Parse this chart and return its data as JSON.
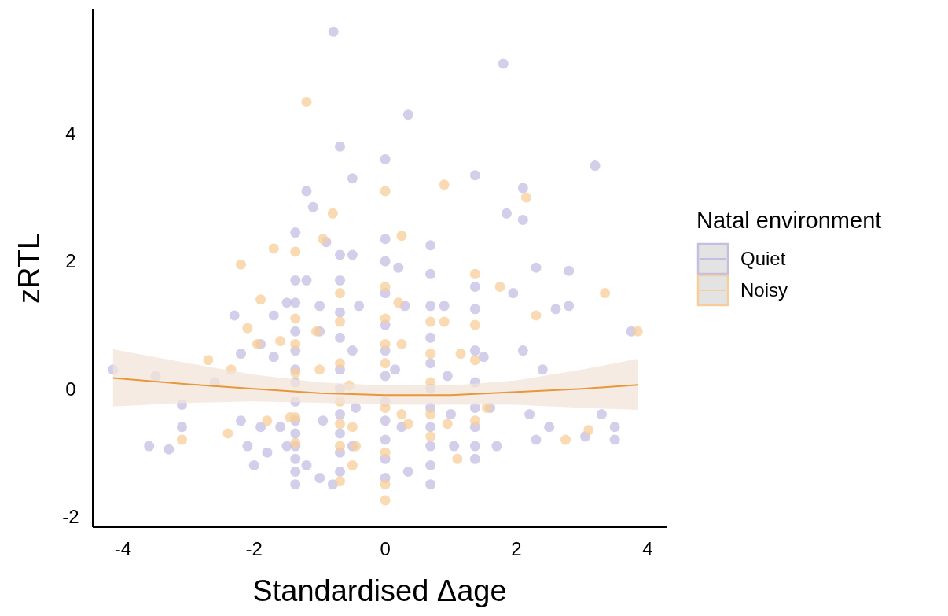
{
  "chart_data": {
    "type": "scatter",
    "xlabel": "Standardised Δage",
    "ylabel": "zRTL",
    "legend_title": "Natal environment",
    "legend": "right",
    "grid": false,
    "marker": "circle",
    "xlim": [
      -4.46,
      4.29
    ],
    "xticks": [
      -4,
      -2,
      0,
      2,
      4
    ],
    "ylim": [
      -2.17,
      5.95
    ],
    "yticks": [
      -2,
      0,
      2,
      4
    ],
    "series": [
      {
        "name": "Quiet",
        "color": "#c4bee3",
        "x": [
          -4.15,
          -3.6,
          -3.5,
          -3.3,
          -3.1,
          -3.1,
          -2.6,
          -2.3,
          -2.2,
          -2.2,
          -2.1,
          -2.0,
          -1.9,
          -1.9,
          -1.8,
          -1.7,
          -1.7,
          -1.6,
          -1.5,
          -1.5,
          -1.37,
          -1.37,
          -1.37,
          -1.37,
          -1.37,
          -1.37,
          -1.37,
          -1.37,
          -1.37,
          -1.37,
          -1.37,
          -1.37,
          -1.37,
          -1.37,
          -1.2,
          -1.2,
          -1.2,
          -1.1,
          -1.0,
          -1.0,
          -0.9,
          -0.95,
          -1.0,
          -0.8,
          -0.69,
          -0.69,
          -0.69,
          -0.69,
          -0.69,
          -0.69,
          -0.69,
          -0.69,
          -0.69,
          -0.69,
          -0.69,
          -0.79,
          -0.5,
          -0.5,
          -0.4,
          -0.5,
          -0.45,
          -0.5,
          0,
          0,
          0,
          0,
          0,
          0,
          0,
          0,
          0,
          0,
          0,
          0,
          0.35,
          0.2,
          0.3,
          0.25,
          0.35,
          0.15,
          0.69,
          0.69,
          0.69,
          0.69,
          0.69,
          0.69,
          0.69,
          0.69,
          0.69,
          0.69,
          0.69,
          0.9,
          0.95,
          1.0,
          1.05,
          1.37,
          1.37,
          1.37,
          1.37,
          1.37,
          1.37,
          1.37,
          1.37,
          1.37,
          1.5,
          1.6,
          1.7,
          1.8,
          1.85,
          1.95,
          2.1,
          2.1,
          2.1,
          2.2,
          2.3,
          2.4,
          2.3,
          2.5,
          2.6,
          2.8,
          2.8,
          3.05,
          3.2,
          3.3,
          3.5,
          3.5,
          3.75
        ],
        "values": [
          0.3,
          -0.9,
          0.2,
          -0.95,
          -0.6,
          -0.25,
          0.1,
          1.15,
          0.55,
          -0.5,
          -0.9,
          -1.2,
          0.7,
          -0.6,
          -1.0,
          1.15,
          0.5,
          -0.6,
          1.35,
          -0.9,
          2.45,
          1.7,
          1.35,
          0.9,
          0.6,
          0.3,
          0.1,
          -0.2,
          -0.5,
          -0.7,
          -0.9,
          -1.1,
          -1.3,
          -1.5,
          3.1,
          1.7,
          -1.2,
          2.85,
          1.3,
          0.9,
          2.3,
          -0.5,
          -1.4,
          -1.5,
          3.8,
          2.1,
          1.7,
          1.2,
          0.8,
          0.3,
          0.0,
          -0.4,
          -0.7,
          -1.0,
          -1.3,
          5.6,
          3.3,
          2.1,
          1.3,
          0.6,
          -0.3,
          -0.9,
          3.6,
          2.35,
          2.0,
          1.5,
          1.0,
          0.6,
          0.2,
          -0.2,
          -0.5,
          -0.8,
          -1.1,
          -1.4,
          4.3,
          1.9,
          1.3,
          -0.6,
          -1.3,
          0.3,
          2.25,
          1.8,
          1.3,
          0.8,
          0.4,
          0,
          -0.3,
          -0.6,
          -0.9,
          -1.2,
          -1.5,
          1.3,
          0.2,
          -0.4,
          -0.9,
          3.35,
          1.6,
          1.25,
          0.6,
          0.1,
          -0.3,
          -0.6,
          -0.9,
          -1.1,
          0.5,
          -0.3,
          -0.9,
          5.1,
          2.75,
          1.5,
          3.15,
          2.65,
          0.6,
          -0.4,
          1.9,
          0.3,
          -0.8,
          -0.6,
          1.25,
          1.85,
          1.3,
          -0.75,
          3.5,
          -0.4,
          -0.6,
          -0.8,
          0.9
        ]
      },
      {
        "name": "Noisy",
        "color": "#f7cd9a",
        "x": [
          -3.1,
          -2.7,
          -2.4,
          -2.35,
          -2.2,
          -2.1,
          -1.95,
          -1.9,
          -1.8,
          -1.7,
          -1.6,
          -1.45,
          -1.37,
          -1.37,
          -1.37,
          -1.37,
          -1.37,
          -1.37,
          -1.2,
          -0.8,
          -0.95,
          -1.05,
          -1.0,
          -0.69,
          -0.69,
          -0.69,
          -0.69,
          -0.69,
          -0.69,
          -0.69,
          -0.55,
          -0.5,
          -0.45,
          -0.5,
          0,
          0,
          0,
          0,
          0,
          0,
          0,
          0,
          0,
          0.25,
          0.2,
          0.25,
          0.25,
          0.35,
          0.69,
          0.69,
          0.69,
          0.69,
          0.69,
          0.9,
          0.9,
          0.95,
          1.1,
          1.15,
          1.37,
          1.37,
          1.37,
          1.37,
          1.55,
          1.75,
          2.15,
          2.3,
          2.75,
          3.1,
          3.35,
          3.85
        ],
        "values": [
          -0.8,
          0.45,
          -0.7,
          0.3,
          1.95,
          0.95,
          0.7,
          1.4,
          -0.5,
          2.2,
          0.75,
          -0.45,
          2.15,
          1.1,
          0.7,
          0.25,
          -0.45,
          -0.85,
          4.5,
          2.75,
          2.35,
          0.9,
          0.3,
          1.5,
          1.05,
          0.4,
          -0.2,
          -0.55,
          -0.9,
          -1.45,
          0.05,
          -0.6,
          -0.9,
          -1.2,
          3.1,
          1.6,
          1.1,
          0.7,
          0.4,
          -0.3,
          -1.0,
          -1.5,
          -1.75,
          2.4,
          1.35,
          0.7,
          -0.4,
          -0.55,
          1.05,
          0.55,
          0.1,
          -0.4,
          -0.75,
          3.2,
          1.05,
          -0.55,
          -1.1,
          0.55,
          1.8,
          1.0,
          0.45,
          -0.5,
          -0.3,
          1.6,
          3.0,
          1.15,
          -0.8,
          -0.65,
          1.5,
          0.9
        ]
      },
      {
        "type": "line",
        "marker": "none",
        "color": "#e8973a",
        "x": [
          -4.15,
          -3,
          -2,
          -1,
          0,
          1,
          2,
          3,
          3.85
        ],
        "values": [
          0.17,
          0.07,
          0.0,
          -0.07,
          -0.1,
          -0.1,
          -0.05,
          0.0,
          0.06
        ],
        "lower": [
          -0.28,
          -0.22,
          -0.2,
          -0.22,
          -0.25,
          -0.25,
          -0.25,
          -0.3,
          -0.33
        ],
        "upper": [
          0.62,
          0.4,
          0.22,
          0.1,
          0.05,
          0.05,
          0.13,
          0.3,
          0.47
        ]
      }
    ]
  }
}
